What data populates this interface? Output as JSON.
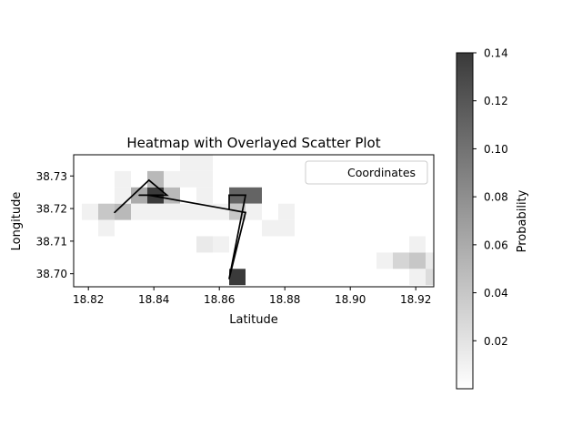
{
  "chart_data": {
    "type": "heatmap",
    "title": "Heatmap with Overlayed Scatter Plot",
    "xlabel": "Latitude",
    "ylabel": "Longitude",
    "colorbar_label": "Probability",
    "xlim": [
      18.8155,
      18.9255
    ],
    "ylim": [
      38.696,
      38.7365
    ],
    "x_ticks": [
      18.82,
      18.84,
      18.86,
      18.88,
      18.9,
      18.92
    ],
    "x_tick_labels": [
      "18.82",
      "18.84",
      "18.86",
      "18.88",
      "18.90",
      "18.92"
    ],
    "y_ticks": [
      38.7,
      38.71,
      38.72,
      38.73
    ],
    "y_tick_labels": [
      "38.70",
      "38.71",
      "38.72",
      "38.73"
    ],
    "colorbar": {
      "range": [
        0,
        0.14
      ],
      "ticks": [
        0.02,
        0.04,
        0.06,
        0.08,
        0.1,
        0.12,
        0.14
      ],
      "tick_labels": [
        "0.02",
        "0.04",
        "0.06",
        "0.08",
        "0.10",
        "0.12",
        "0.14"
      ],
      "colormap": "Greys",
      "low_color": "#ffffff",
      "high_color": "#3a3a3a"
    },
    "grid": false,
    "legend": {
      "entries": [
        "Coordinates"
      ],
      "placement": "top-right"
    },
    "cells": [
      {
        "x": 18.8205,
        "y": 38.719,
        "value": 0.01
      },
      {
        "x": 18.8255,
        "y": 38.719,
        "value": 0.04
      },
      {
        "x": 18.8305,
        "y": 38.719,
        "value": 0.05
      },
      {
        "x": 18.8255,
        "y": 38.714,
        "value": 0.01
      },
      {
        "x": 18.8305,
        "y": 38.729,
        "value": 0.01
      },
      {
        "x": 18.8305,
        "y": 38.724,
        "value": 0.01
      },
      {
        "x": 18.8355,
        "y": 38.724,
        "value": 0.06
      },
      {
        "x": 18.8405,
        "y": 38.724,
        "value": 0.14
      },
      {
        "x": 18.8455,
        "y": 38.724,
        "value": 0.05
      },
      {
        "x": 18.8405,
        "y": 38.729,
        "value": 0.05
      },
      {
        "x": 18.8455,
        "y": 38.729,
        "value": 0.01
      },
      {
        "x": 18.8355,
        "y": 38.719,
        "value": 0.01
      },
      {
        "x": 18.8405,
        "y": 38.719,
        "value": 0.01
      },
      {
        "x": 18.8455,
        "y": 38.719,
        "value": 0.01
      },
      {
        "x": 18.8505,
        "y": 38.719,
        "value": 0.01
      },
      {
        "x": 18.8505,
        "y": 38.729,
        "value": 0.01
      },
      {
        "x": 18.8555,
        "y": 38.729,
        "value": 0.01
      },
      {
        "x": 18.8505,
        "y": 38.734,
        "value": 0.01
      },
      {
        "x": 18.8555,
        "y": 38.734,
        "value": 0.01
      },
      {
        "x": 18.8555,
        "y": 38.724,
        "value": 0.01
      },
      {
        "x": 18.8555,
        "y": 38.719,
        "value": 0.01
      },
      {
        "x": 18.8605,
        "y": 38.719,
        "value": 0.01
      },
      {
        "x": 18.8655,
        "y": 38.724,
        "value": 0.11
      },
      {
        "x": 18.8705,
        "y": 38.724,
        "value": 0.11
      },
      {
        "x": 18.8655,
        "y": 38.719,
        "value": 0.04
      },
      {
        "x": 18.8705,
        "y": 38.719,
        "value": 0.01
      },
      {
        "x": 18.8755,
        "y": 38.714,
        "value": 0.01
      },
      {
        "x": 18.8805,
        "y": 38.714,
        "value": 0.01
      },
      {
        "x": 18.8805,
        "y": 38.719,
        "value": 0.01
      },
      {
        "x": 18.8555,
        "y": 38.709,
        "value": 0.015
      },
      {
        "x": 18.8605,
        "y": 38.709,
        "value": 0.01
      },
      {
        "x": 18.8655,
        "y": 38.699,
        "value": 0.14
      },
      {
        "x": 18.9105,
        "y": 38.704,
        "value": 0.01
      },
      {
        "x": 18.9155,
        "y": 38.704,
        "value": 0.03
      },
      {
        "x": 18.9205,
        "y": 38.704,
        "value": 0.04
      },
      {
        "x": 18.9255,
        "y": 38.704,
        "value": 0.015
      },
      {
        "x": 18.9205,
        "y": 38.709,
        "value": 0.01
      },
      {
        "x": 18.9205,
        "y": 38.699,
        "value": 0.01
      },
      {
        "x": 18.9255,
        "y": 38.699,
        "value": 0.025
      }
    ],
    "cell_size": [
      0.005,
      0.005
    ],
    "series": [
      {
        "line_color": "#000000",
        "points": [
          {
            "x": 18.828,
            "y": 38.7188
          },
          {
            "x": 18.8385,
            "y": 38.7287
          },
          {
            "x": 18.844,
            "y": 38.7241
          },
          {
            "x": 18.8355,
            "y": 38.7241
          },
          {
            "x": 18.8385,
            "y": 38.7241
          },
          {
            "x": 18.868,
            "y": 38.7188
          },
          {
            "x": 18.863,
            "y": 38.6985
          },
          {
            "x": 18.868,
            "y": 38.7241
          },
          {
            "x": 18.863,
            "y": 38.7241
          },
          {
            "x": 18.863,
            "y": 38.7197
          }
        ]
      }
    ]
  }
}
